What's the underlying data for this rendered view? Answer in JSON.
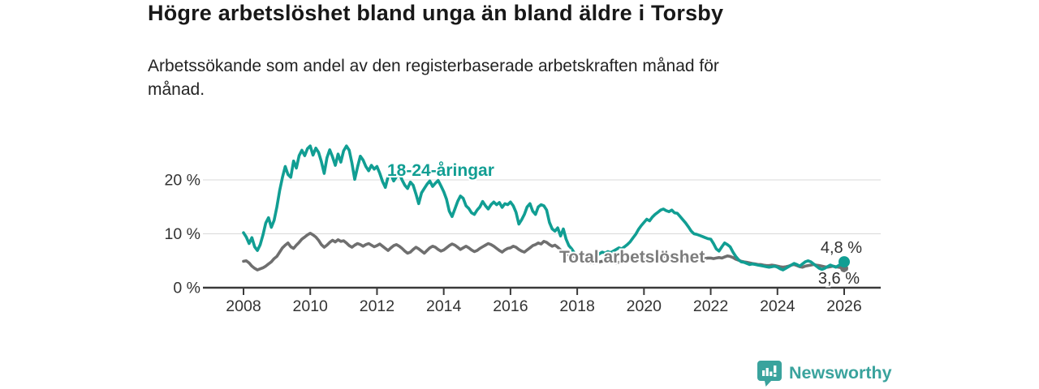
{
  "header": {
    "title": "Högre arbetslöshet bland unga än bland äldre i Torsby",
    "subtitle": "Arbetssökande som andel av den registerbaserade arbetskraften månad för månad."
  },
  "footer": {
    "brand": "Newsworthy",
    "logo_icon": "bar-chart-speech-bubble-icon",
    "brand_color": "#3aa39d"
  },
  "chart_data": {
    "type": "line",
    "title": "Högre arbetslöshet bland unga än bland äldre i Torsby",
    "subtitle": "Arbetssökande som andel av den registerbaserade arbetskraften månad för månad.",
    "unit": "%",
    "grid": "horizontal-only",
    "legend_position": "inline-labels",
    "x_axis": {
      "ticks": [
        2008,
        2010,
        2012,
        2014,
        2016,
        2018,
        2020,
        2022,
        2024,
        2026
      ],
      "tick_labels": [
        "2008",
        "2010",
        "2012",
        "2014",
        "2016",
        "2018",
        "2020",
        "2022",
        "2024",
        "2026"
      ]
    },
    "y_axis": {
      "ticks": [
        {
          "value": 0,
          "label": "0 %"
        },
        {
          "value": 10,
          "label": "10 %"
        },
        {
          "value": 20,
          "label": "20 %"
        }
      ],
      "range": [
        0,
        27.8
      ]
    },
    "series": [
      {
        "name": "Total arbetslöshet",
        "color": "#6f6f6f",
        "label_color": "#7d7d7d",
        "start_year": 2008,
        "frequency": "monthly",
        "end_value_label": "3,6 %",
        "end_value": 3.6,
        "values": [
          4.9,
          5.0,
          4.6,
          4.0,
          3.6,
          3.3,
          3.5,
          3.7,
          4.0,
          4.4,
          4.8,
          5.4,
          5.8,
          6.6,
          7.4,
          7.9,
          8.3,
          7.6,
          7.3,
          7.9,
          8.4,
          9.0,
          9.4,
          9.8,
          10.1,
          9.8,
          9.4,
          8.8,
          8.0,
          7.5,
          7.9,
          8.4,
          8.8,
          8.5,
          8.9,
          8.6,
          8.7,
          8.3,
          7.8,
          7.5,
          7.9,
          8.2,
          8.0,
          7.7,
          8.0,
          8.2,
          7.9,
          7.6,
          7.8,
          8.1,
          7.7,
          7.3,
          6.9,
          7.4,
          7.8,
          8.0,
          7.7,
          7.3,
          6.8,
          6.4,
          6.6,
          7.1,
          7.5,
          7.2,
          6.8,
          6.4,
          6.9,
          7.4,
          7.7,
          7.5,
          7.1,
          6.8,
          7.0,
          7.4,
          7.8,
          8.1,
          7.9,
          7.5,
          7.1,
          7.4,
          7.7,
          7.4,
          7.0,
          6.7,
          6.9,
          7.3,
          7.6,
          7.9,
          8.2,
          8.0,
          7.7,
          7.3,
          6.9,
          6.6,
          7.0,
          7.3,
          7.4,
          7.7,
          7.5,
          7.1,
          6.8,
          6.6,
          7.0,
          7.4,
          7.8,
          8.0,
          8.3,
          8.1,
          8.6,
          8.4,
          8.0,
          7.7,
          7.9,
          7.5,
          7.0,
          6.6,
          6.2,
          6.0,
          5.9,
          5.8,
          5.5,
          5.2,
          5.0,
          4.9,
          4.8,
          4.7,
          4.6,
          4.7,
          4.8,
          4.9,
          5.0,
          4.9,
          4.8,
          4.7,
          4.6,
          4.7,
          4.8,
          4.9,
          5.0,
          5.1,
          5.0,
          5.1,
          5.2,
          5.3,
          5.4,
          5.5,
          5.7,
          5.9,
          6.0,
          6.1,
          6.0,
          5.9,
          5.8,
          5.7,
          5.6,
          5.5,
          5.8,
          5.7,
          5.6,
          5.5,
          5.4,
          5.3,
          5.3,
          5.2,
          5.3,
          5.4,
          5.4,
          5.5,
          5.5,
          5.4,
          5.5,
          5.6,
          5.5,
          5.7,
          5.9,
          5.8,
          5.6,
          5.3,
          5.1,
          4.9,
          4.8,
          4.7,
          4.6,
          4.5,
          4.4,
          4.3,
          4.3,
          4.2,
          4.1,
          4.1,
          4.2,
          4.1,
          4.0,
          3.9,
          3.8,
          3.9,
          4.0,
          4.2,
          4.3,
          4.1,
          3.9,
          3.8,
          4.0,
          4.1,
          4.2,
          4.3,
          4.2,
          4.1,
          4.0,
          3.9,
          3.8,
          3.9,
          4.0,
          3.9,
          3.8,
          3.7,
          3.6
        ]
      },
      {
        "name": "18-24-åringar",
        "color": "#119e93",
        "label_color": "#119e93",
        "start_year": 2008,
        "frequency": "monthly",
        "end_value_label": "4,8 %",
        "end_value": 4.8,
        "values": [
          10.2,
          9.4,
          8.2,
          9.3,
          7.6,
          6.9,
          8.0,
          9.8,
          12.0,
          13.0,
          11.2,
          12.5,
          15.0,
          18.0,
          20.5,
          22.5,
          21.0,
          20.5,
          23.5,
          22.2,
          24.5,
          25.5,
          24.5,
          25.8,
          26.3,
          24.6,
          25.9,
          25.1,
          23.4,
          21.2,
          24.1,
          25.6,
          24.3,
          22.7,
          24.8,
          23.3,
          25.4,
          26.3,
          25.5,
          23.1,
          20.1,
          22.4,
          24.4,
          23.7,
          22.5,
          21.7,
          22.7,
          22.0,
          22.5,
          21.2,
          19.7,
          18.6,
          20.6,
          21.0,
          19.8,
          20.6,
          21.2,
          20.0,
          19.0,
          18.4,
          19.6,
          19.0,
          17.4,
          15.6,
          17.6,
          18.4,
          19.2,
          19.8,
          18.8,
          19.4,
          19.9,
          18.9,
          17.8,
          16.4,
          14.2,
          13.2,
          14.6,
          16.0,
          17.0,
          16.6,
          15.2,
          14.7,
          13.9,
          13.6,
          14.4,
          15.0,
          16.0,
          15.2,
          14.6,
          15.4,
          15.9,
          15.4,
          15.8,
          14.9,
          15.6,
          15.4,
          15.9,
          15.2,
          14.0,
          11.8,
          12.6,
          13.6,
          15.0,
          15.6,
          14.2,
          13.6,
          15.0,
          15.4,
          15.2,
          14.4,
          12.1,
          10.9,
          10.5,
          11.1,
          9.6,
          10.9,
          9.0,
          7.8,
          7.2,
          6.4,
          5.7,
          5.4,
          5.6,
          5.9,
          6.2,
          5.8,
          5.5,
          5.9,
          6.3,
          6.6,
          6.4,
          6.7,
          6.5,
          6.8,
          7.1,
          7.4,
          7.2,
          7.6,
          8.0,
          8.5,
          9.2,
          9.9,
          10.8,
          11.5,
          12.1,
          12.7,
          12.4,
          13.1,
          13.6,
          14.0,
          14.4,
          14.6,
          14.3,
          14.1,
          14.4,
          13.9,
          13.8,
          13.2,
          12.6,
          12.0,
          11.3,
          10.5,
          10.0,
          9.9,
          9.7,
          9.5,
          9.3,
          9.1,
          9.0,
          8.2,
          7.2,
          6.8,
          7.6,
          8.3,
          8.0,
          7.6,
          6.6,
          5.8,
          5.2,
          4.8,
          4.7,
          4.5,
          4.3,
          4.4,
          4.3,
          4.2,
          4.1,
          4.0,
          3.9,
          3.8,
          3.9,
          4.0,
          3.8,
          3.5,
          3.3,
          3.6,
          3.9,
          4.2,
          4.5,
          4.3,
          4.0,
          4.4,
          4.8,
          5.0,
          4.8,
          4.4,
          4.0,
          3.6,
          3.4,
          3.6,
          3.9,
          4.2,
          4.0,
          3.8,
          4.1,
          4.4,
          4.8
        ]
      }
    ]
  }
}
